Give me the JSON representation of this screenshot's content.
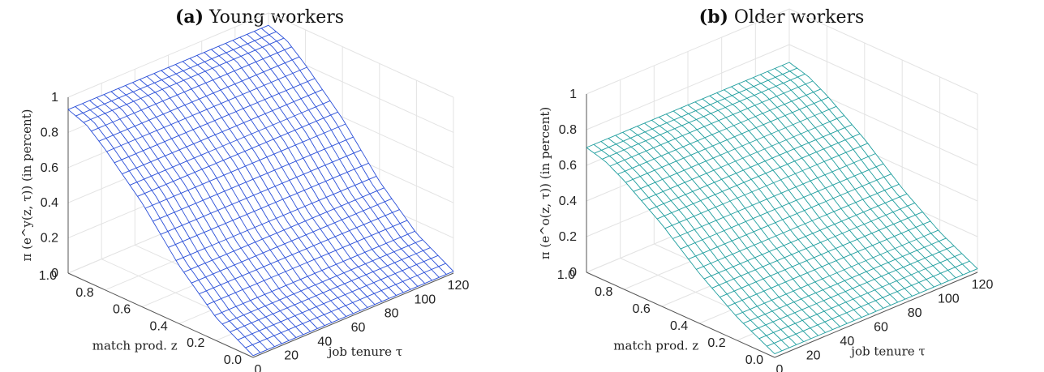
{
  "figures": [
    {
      "tag": "(a)",
      "title": "Young workers",
      "zlabel": "π (e^y(z, τ)) (in percent)",
      "color": "#2a4fd8"
    },
    {
      "tag": "(b)",
      "title": "Older workers",
      "zlabel": "π (e^o(z, τ)) (in percent)",
      "color": "#1f9e9e"
    }
  ],
  "chart_data": [
    {
      "type": "surface",
      "title": "(a) Young workers",
      "xlabel": "match prod. z",
      "ylabel": "job tenure τ",
      "zlabel": "π (e^y(z, τ)) (in percent)",
      "x_ticks": [
        "0.0",
        "0.2",
        "0.4",
        "0.6",
        "0.8",
        "1.0"
      ],
      "y_ticks": [
        "0",
        "20",
        "40",
        "60",
        "80",
        "100",
        "120"
      ],
      "z_ticks": [
        "0",
        "0.2",
        "0.4",
        "0.6",
        "0.8",
        "1"
      ],
      "xlim": [
        0,
        1
      ],
      "ylim": [
        0,
        120
      ],
      "zlim": [
        0,
        1
      ],
      "grid": true,
      "series": [
        {
          "z": [
            1.0,
            0.9,
            0.8,
            0.6,
            0.4,
            0.2,
            0.0
          ],
          "pi": [
            0.93,
            0.89,
            0.8,
            0.59,
            0.33,
            0.13,
            0.01
          ]
        }
      ]
    },
    {
      "type": "surface",
      "title": "(b) Older workers",
      "xlabel": "match prod. z",
      "ylabel": "job tenure τ",
      "zlabel": "π (e^o(z, τ)) (in percent)",
      "x_ticks": [
        "0.0",
        "0.2",
        "0.4",
        "0.6",
        "0.8",
        "1.0"
      ],
      "y_ticks": [
        "0",
        "20",
        "40",
        "60",
        "80",
        "100",
        "120"
      ],
      "z_ticks": [
        "0",
        "0.2",
        "0.4",
        "0.6",
        "0.8",
        "1"
      ],
      "xlim": [
        0,
        1
      ],
      "ylim": [
        0,
        120
      ],
      "zlim": [
        0,
        1
      ],
      "grid": true,
      "series": [
        {
          "z": [
            1.0,
            0.9,
            0.8,
            0.6,
            0.4,
            0.2,
            0.0
          ],
          "pi": [
            0.7,
            0.67,
            0.61,
            0.46,
            0.28,
            0.13,
            0.02
          ]
        }
      ]
    }
  ]
}
